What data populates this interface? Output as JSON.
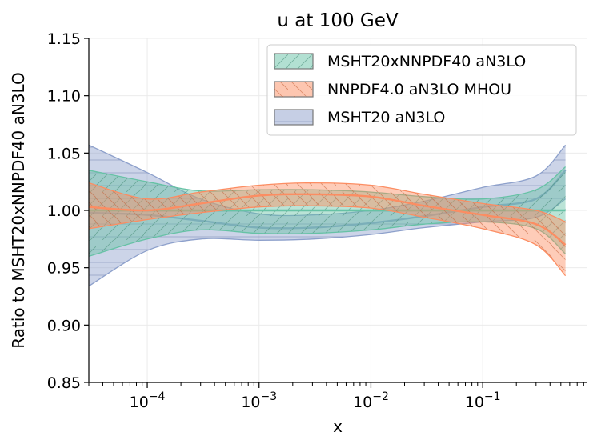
{
  "chart_data": {
    "type": "area",
    "title": "u at 100 GeV",
    "xlabel": "x",
    "ylabel": "Ratio to MSHT20xNNPDF40 aN3LO",
    "xscale": "log",
    "xlim": [
      3e-05,
      0.85
    ],
    "ylim": [
      0.85,
      1.15
    ],
    "yticks": [
      0.85,
      0.9,
      0.95,
      1.0,
      1.05,
      1.1,
      1.15
    ],
    "ytick_labels": [
      "0.85",
      "0.90",
      "0.95",
      "1.00",
      "1.05",
      "1.10",
      "1.15"
    ],
    "xticks": [
      0.0001,
      0.001,
      0.01,
      0.1
    ],
    "xtick_labels": [
      {
        "base": "10",
        "exp": "−4"
      },
      {
        "base": "10",
        "exp": "−3"
      },
      {
        "base": "10",
        "exp": "−2"
      },
      {
        "base": "10",
        "exp": "−1"
      }
    ],
    "grid": true,
    "legend_position": "top-right",
    "series": [
      {
        "name": "MSHT20xNNPDF40 aN3LO",
        "color": "#66c2a5",
        "hatch": "/",
        "x": [
          3e-05,
          0.0001,
          0.0003,
          0.001,
          0.003,
          0.01,
          0.03,
          0.1,
          0.3,
          0.55
        ],
        "central": [
          1.0,
          1.0,
          1.0,
          1.0,
          1.0,
          1.0,
          1.0,
          1.0,
          1.0,
          1.0
        ],
        "upper": [
          1.035,
          1.025,
          1.017,
          1.018,
          1.018,
          1.016,
          1.012,
          1.01,
          1.018,
          1.038
        ],
        "lower": [
          0.96,
          0.975,
          0.983,
          0.98,
          0.98,
          0.983,
          0.988,
          0.99,
          0.984,
          0.962
        ]
      },
      {
        "name": "NNPDF4.0 aN3LO MHOU",
        "color": "#fc8d62",
        "hatch": "\\",
        "x": [
          3e-05,
          0.0001,
          0.0003,
          0.001,
          0.003,
          0.01,
          0.03,
          0.1,
          0.3,
          0.55
        ],
        "central": [
          1.003,
          1.0,
          1.006,
          1.013,
          1.014,
          1.012,
          1.004,
          0.996,
          0.988,
          0.97
        ],
        "upper": [
          1.024,
          1.01,
          1.016,
          1.022,
          1.024,
          1.022,
          1.014,
          1.006,
          1.0,
          0.99
        ],
        "lower": [
          0.984,
          0.992,
          0.998,
          1.003,
          1.004,
          1.002,
          0.994,
          0.984,
          0.97,
          0.943
        ]
      },
      {
        "name": "MSHT20 aN3LO",
        "color": "#8da0cb",
        "hatch": "-",
        "x": [
          3e-05,
          0.0001,
          0.0003,
          0.001,
          0.003,
          0.01,
          0.03,
          0.1,
          0.3,
          0.55
        ],
        "central": [
          0.998,
          0.996,
          0.991,
          0.985,
          0.985,
          0.989,
          0.995,
          1.003,
          1.01,
          1.035
        ],
        "upper": [
          1.057,
          1.033,
          1.01,
          0.997,
          0.996,
          1.0,
          1.008,
          1.02,
          1.03,
          1.057
        ],
        "lower": [
          0.934,
          0.965,
          0.975,
          0.974,
          0.975,
          0.979,
          0.985,
          0.99,
          0.994,
          1.01
        ]
      }
    ]
  }
}
